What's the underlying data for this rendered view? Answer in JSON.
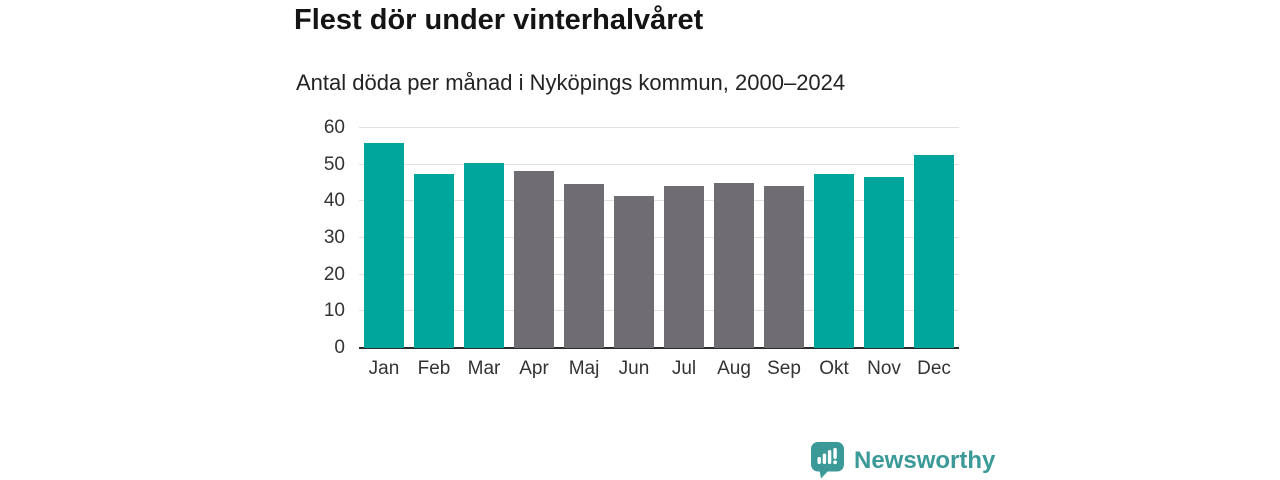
{
  "header": {
    "title": "Flest dör under vinterhalvåret",
    "subtitle": "Antal döda per månad i Nyköpings kommun, 2000–2024"
  },
  "chart_data": {
    "type": "bar",
    "title": "Flest dör under vinterhalvåret",
    "subtitle": "Antal döda per månad i Nyköpings kommun, 2000–2024",
    "categories": [
      "Jan",
      "Feb",
      "Mar",
      "Apr",
      "Maj",
      "Jun",
      "Jul",
      "Aug",
      "Sep",
      "Okt",
      "Nov",
      "Dec"
    ],
    "values": [
      56,
      47.5,
      50.4,
      48.3,
      44.7,
      41.4,
      44.2,
      45.1,
      44.3,
      47.5,
      46.7,
      52.7
    ],
    "highlighted": [
      true,
      true,
      true,
      false,
      false,
      false,
      false,
      false,
      false,
      true,
      true,
      true
    ],
    "xlabel": "",
    "ylabel": "",
    "ylim": [
      0,
      60
    ],
    "yticks": [
      0,
      10,
      20,
      30,
      40,
      50,
      60
    ],
    "grid": true,
    "legend": false,
    "colors": {
      "highlight": "#00a59c",
      "muted": "#6f6d72",
      "gridline": "#e2e2e2",
      "axis": "#2b2b2b",
      "tick_text": "#333333"
    }
  },
  "branding": {
    "logo_text": "Newsworthy",
    "logo_color": "#3b9a98",
    "logo_icon": "bar-chart-speech-bubble-icon"
  }
}
